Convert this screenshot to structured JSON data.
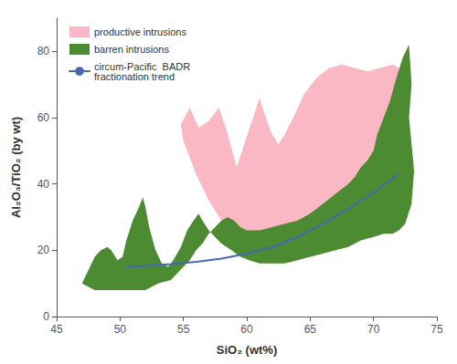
{
  "chart_data": {
    "type": "polygon",
    "xlabel": "SiO₂ (wt%)",
    "ylabel": "Al₂O₃/TiO₂ (by wt)",
    "xlim": [
      45,
      75
    ],
    "ylim": [
      0,
      90
    ],
    "xticks": [
      45,
      50,
      55,
      60,
      65,
      70,
      75
    ],
    "yticks": [
      0,
      20,
      40,
      60,
      80
    ],
    "grid": false,
    "legend": "upper left",
    "series": [
      {
        "name": "productive intrusions",
        "type": "polygon",
        "color": "#f9b8c4",
        "x": [
          54.8,
          55.5,
          56.2,
          57.0,
          57.8,
          58.5,
          59.2,
          59.8,
          60.5,
          61.0,
          61.5,
          62.0,
          62.5,
          63.0,
          63.8,
          64.5,
          65.5,
          66.5,
          67.5,
          68.5,
          69.5,
          70.5,
          71.5,
          72.0,
          72.5,
          72.5,
          72.8,
          72.5,
          72.0,
          71.0,
          70.0,
          69.0,
          68.0,
          67.0,
          66.0,
          65.0,
          64.0,
          63.0,
          62.0,
          61.0,
          60.0,
          59.5,
          59.0,
          58.5,
          58.0,
          57.5,
          57.0,
          56.5,
          56.0,
          55.5,
          55.0,
          54.8
        ],
        "values": [
          58,
          63,
          57,
          59,
          63,
          55,
          45,
          52,
          60,
          66,
          60,
          55,
          52,
          55,
          61,
          67,
          72,
          75,
          76,
          75,
          74,
          75,
          76,
          75,
          72,
          72,
          62,
          48,
          40,
          36,
          33,
          31,
          29,
          27,
          25,
          24,
          22,
          20,
          19,
          19,
          19,
          21,
          24,
          26,
          29,
          32,
          35,
          39,
          43,
          48,
          53,
          58
        ]
      },
      {
        "name": "barren intrusions",
        "type": "polygon",
        "color": "#4d8b32",
        "x": [
          47.0,
          47.5,
          48.0,
          48.5,
          49.0,
          49.3,
          49.8,
          50.2,
          50.5,
          51.0,
          51.5,
          51.8,
          52.0,
          52.3,
          52.8,
          53.3,
          53.8,
          54.2,
          54.8,
          55.3,
          55.8,
          56.2,
          56.5,
          57.0,
          57.5,
          58.0,
          58.8,
          59.5,
          60.2,
          61.0,
          62.0,
          63.0,
          64.0,
          65.0,
          66.0,
          67.0,
          68.0,
          69.0,
          70.0,
          70.8,
          71.5,
          72.0,
          72.5,
          73.0,
          73.2,
          73.0,
          72.8,
          73.0,
          72.8,
          72.3,
          71.8,
          71.3,
          70.8,
          70.3,
          70.0,
          69.5,
          69.0,
          68.5,
          68.0,
          67.0,
          66.0,
          65.0,
          64.0,
          63.0,
          62.0,
          61.0,
          60.0,
          59.5,
          59.0,
          58.5,
          58.0,
          57.5,
          57.0,
          56.5,
          56.0,
          55.5,
          55.0,
          54.5,
          54.0,
          53.0,
          52.0,
          51.0,
          50.0,
          49.0,
          48.0,
          47.0
        ],
        "values": [
          10,
          14,
          18,
          20,
          21,
          20,
          17,
          18,
          23,
          29,
          33,
          36,
          33,
          27,
          20,
          16,
          15,
          17,
          21,
          26,
          29,
          31,
          29,
          26,
          24,
          22,
          20,
          18,
          17,
          16,
          16,
          16,
          17,
          18,
          19,
          20,
          21,
          23,
          24,
          25,
          25,
          26,
          28,
          34,
          44,
          52,
          60,
          70,
          82,
          78,
          72,
          65,
          60,
          55,
          50,
          47,
          45,
          42,
          40,
          37,
          34,
          31,
          29,
          28,
          27,
          26,
          26,
          27,
          29,
          30,
          29,
          27,
          25,
          22,
          20,
          17,
          15,
          13,
          11,
          10,
          8,
          8,
          8,
          8,
          8,
          10
        ]
      },
      {
        "name": "circum-Pacific  BADR\nfractionation trend",
        "type": "line",
        "color": "#4469b0",
        "x": [
          50.5,
          52,
          54,
          56,
          58,
          60,
          62,
          64,
          66,
          68,
          70,
          72
        ],
        "values": [
          15.0,
          15.3,
          15.8,
          16.5,
          17.5,
          19.0,
          21.0,
          24.0,
          28.0,
          32.5,
          37.5,
          43.0
        ]
      }
    ]
  }
}
